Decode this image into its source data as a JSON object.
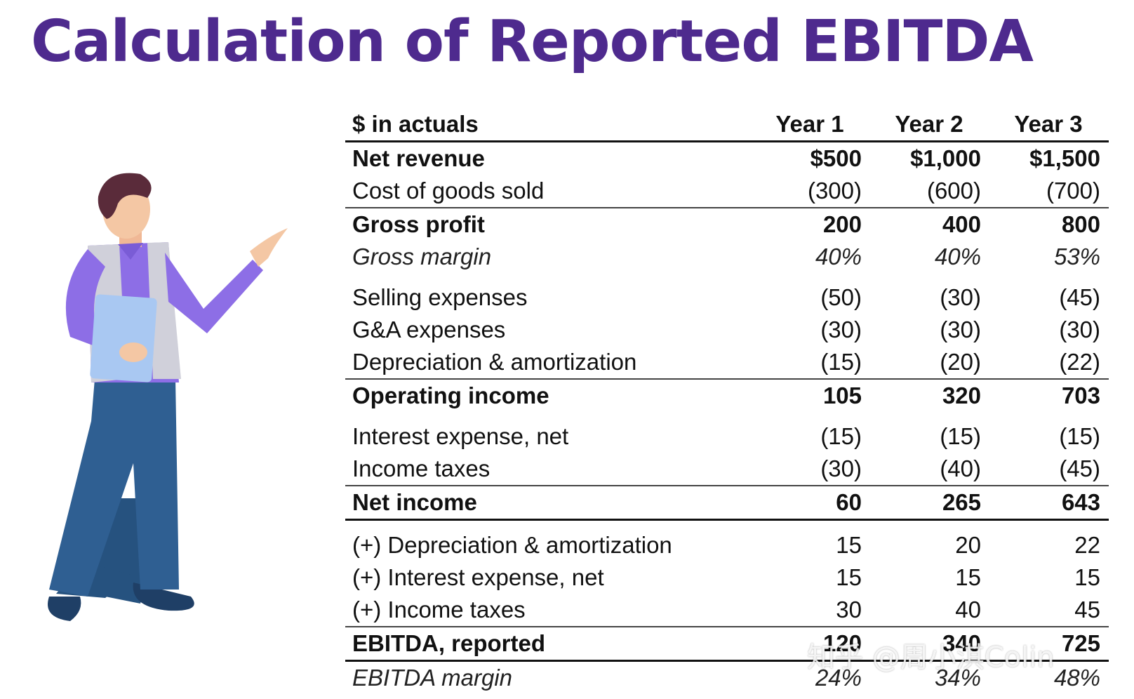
{
  "title": "Calculation of Reported EBITDA",
  "colors": {
    "title": "#4e2a8e",
    "shirt": "#8d6ee6",
    "vest": "#c9c9d4",
    "pants": "#2f5f92",
    "skin": "#f4c7a4",
    "hair": "#5a2b3a"
  },
  "figure": {
    "icon": "presenter-illustration-icon"
  },
  "table": {
    "header": {
      "label": "$ in actuals",
      "years": [
        "Year 1",
        "Year 2",
        "Year 3"
      ]
    },
    "rows": [
      {
        "label": "Net revenue",
        "values": [
          "$500",
          "$1,000",
          "$1,500"
        ]
      },
      {
        "label": "Cost of goods sold",
        "values": [
          "(300)",
          "(600)",
          "(700)"
        ]
      },
      {
        "label": "Gross profit",
        "values": [
          "200",
          "400",
          "800"
        ]
      },
      {
        "label": "Gross margin",
        "values": [
          "40%",
          "40%",
          "53%"
        ]
      },
      {
        "label": "Selling expenses",
        "values": [
          "(50)",
          "(30)",
          "(45)"
        ]
      },
      {
        "label": "G&A expenses",
        "values": [
          "(30)",
          "(30)",
          "(30)"
        ]
      },
      {
        "label": "Depreciation & amortization",
        "values": [
          "(15)",
          "(20)",
          "(22)"
        ]
      },
      {
        "label": "Operating income",
        "values": [
          "105",
          "320",
          "703"
        ]
      },
      {
        "label": "Interest expense, net",
        "values": [
          "(15)",
          "(15)",
          "(15)"
        ]
      },
      {
        "label": "Income taxes",
        "values": [
          "(30)",
          "(40)",
          "(45)"
        ]
      },
      {
        "label": "Net income",
        "values": [
          "60",
          "265",
          "643"
        ]
      },
      {
        "label": "(+) Depreciation & amortization",
        "values": [
          "15",
          "20",
          "22"
        ]
      },
      {
        "label": "(+) Interest expense, net",
        "values": [
          "15",
          "15",
          "15"
        ]
      },
      {
        "label": "(+) Income taxes",
        "values": [
          "30",
          "40",
          "45"
        ]
      },
      {
        "label": "EBITDA, reported",
        "values": [
          "120",
          "340",
          "725"
        ]
      },
      {
        "label": "EBITDA margin",
        "values": [
          "24%",
          "34%",
          "48%"
        ]
      }
    ]
  },
  "watermark": "知乎 @周小淇Colin"
}
